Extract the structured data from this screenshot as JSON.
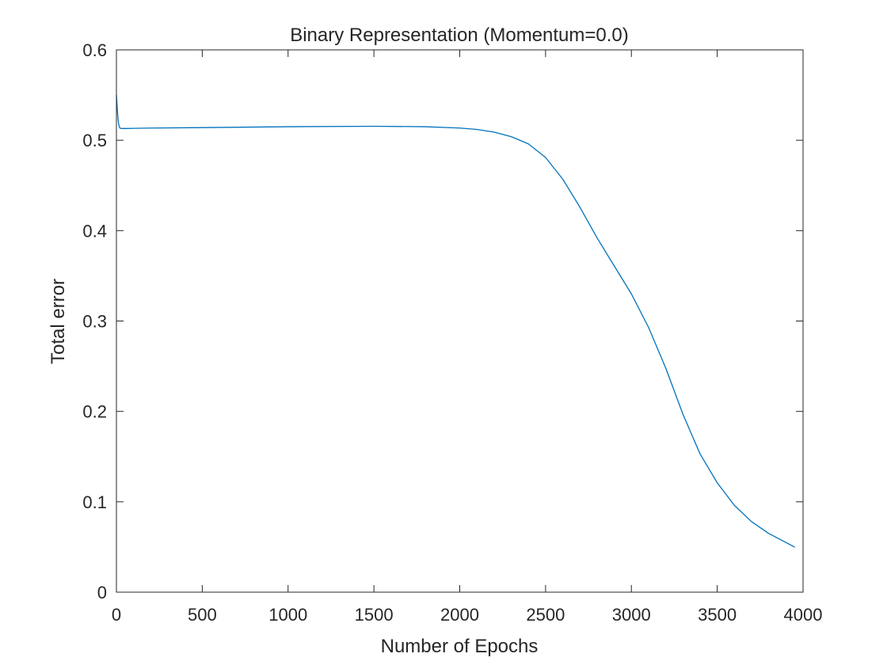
{
  "chart_data": {
    "type": "line",
    "title": "Binary Representation (Momentum=0.0)",
    "xlabel": "Number of Epochs",
    "ylabel": "Total error",
    "xlim": [
      0,
      4000
    ],
    "ylim": [
      0,
      0.6
    ],
    "xticks": [
      0,
      500,
      1000,
      1500,
      2000,
      2500,
      3000,
      3500,
      4000
    ],
    "yticks": [
      0,
      0.1,
      0.2,
      0.3,
      0.4,
      0.5,
      0.6
    ],
    "xtick_labels": [
      "0",
      "500",
      "1000",
      "1500",
      "2000",
      "2500",
      "3000",
      "3500",
      "4000"
    ],
    "ytick_labels": [
      "0",
      "0.1",
      "0.2",
      "0.3",
      "0.4",
      "0.5",
      "0.6"
    ],
    "grid": false,
    "legend": false,
    "series": [
      {
        "color": "#0072BD",
        "x": [
          0,
          5,
          10,
          15,
          20,
          30,
          40,
          60,
          100,
          200,
          500,
          1000,
          1500,
          1800,
          2000,
          2100,
          2200,
          2300,
          2400,
          2500,
          2600,
          2700,
          2800,
          2900,
          3000,
          3100,
          3200,
          3300,
          3400,
          3500,
          3600,
          3700,
          3800,
          3900,
          3950
        ],
        "y": [
          0.55,
          0.535,
          0.522,
          0.516,
          0.5135,
          0.513,
          0.513,
          0.513,
          0.5132,
          0.5135,
          0.514,
          0.515,
          0.5155,
          0.515,
          0.5135,
          0.512,
          0.509,
          0.504,
          0.496,
          0.481,
          0.457,
          0.426,
          0.392,
          0.361,
          0.33,
          0.293,
          0.248,
          0.197,
          0.153,
          0.121,
          0.096,
          0.078,
          0.065,
          0.055,
          0.05
        ]
      }
    ]
  }
}
